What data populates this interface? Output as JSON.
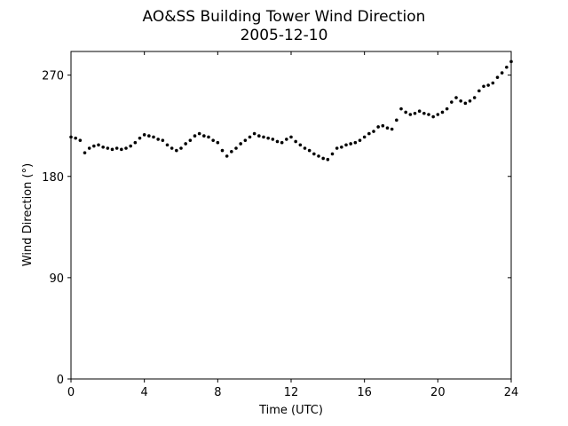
{
  "chart_data": {
    "type": "scatter",
    "title": "AO&SS Building Tower Wind Direction",
    "subtitle": "2005-12-10",
    "x_label": "Time (UTC)",
    "y_label": "Wind Direction (°)",
    "xlim": [
      0,
      24
    ],
    "xticks": [
      0,
      4,
      8,
      12,
      16,
      20,
      24
    ],
    "ylim": [
      0,
      291
    ],
    "yticks": [
      0,
      90,
      180,
      270
    ],
    "color": "#000000",
    "x": [
      0,
      0.25,
      0.5,
      0.75,
      1,
      1.25,
      1.5,
      1.75,
      2,
      2.25,
      2.5,
      2.75,
      3,
      3.25,
      3.5,
      3.75,
      4,
      4.25,
      4.5,
      4.75,
      5,
      5.25,
      5.5,
      5.75,
      6,
      6.25,
      6.5,
      6.75,
      7,
      7.25,
      7.5,
      7.75,
      8,
      8.25,
      8.5,
      8.75,
      9,
      9.25,
      9.5,
      9.75,
      10,
      10.25,
      10.5,
      10.75,
      11,
      11.25,
      11.5,
      11.75,
      12,
      12.25,
      12.5,
      12.75,
      13,
      13.25,
      13.5,
      13.75,
      14,
      14.25,
      14.5,
      14.75,
      15,
      15.25,
      15.5,
      15.75,
      16,
      16.25,
      16.5,
      16.75,
      17,
      17.25,
      17.5,
      17.75,
      18,
      18.25,
      18.5,
      18.75,
      19,
      19.25,
      19.5,
      19.75,
      20,
      20.25,
      20.5,
      20.75,
      21,
      21.25,
      21.5,
      21.75,
      22,
      22.25,
      22.5,
      22.75,
      23,
      23.25,
      23.5,
      23.75,
      24
    ],
    "values": [
      215,
      214,
      212,
      201,
      205,
      207,
      208,
      206,
      205,
      204,
      205,
      204,
      205,
      207,
      210,
      214,
      217,
      216,
      215,
      213,
      212,
      208,
      205,
      203,
      205,
      209,
      212,
      216,
      218,
      216,
      215,
      212,
      210,
      203,
      198,
      202,
      205,
      209,
      212,
      215,
      218,
      216,
      215,
      214,
      213,
      211,
      210,
      213,
      215,
      211,
      208,
      205,
      203,
      200,
      198,
      196,
      195,
      200,
      205,
      206,
      208,
      209,
      210,
      212,
      215,
      218,
      220,
      224,
      225,
      223,
      222,
      230,
      240,
      237,
      235,
      236,
      238,
      236,
      235,
      233,
      235,
      237,
      240,
      246,
      250,
      247,
      245,
      247,
      250,
      256,
      260,
      261,
      263,
      268,
      272,
      277,
      282
    ]
  }
}
